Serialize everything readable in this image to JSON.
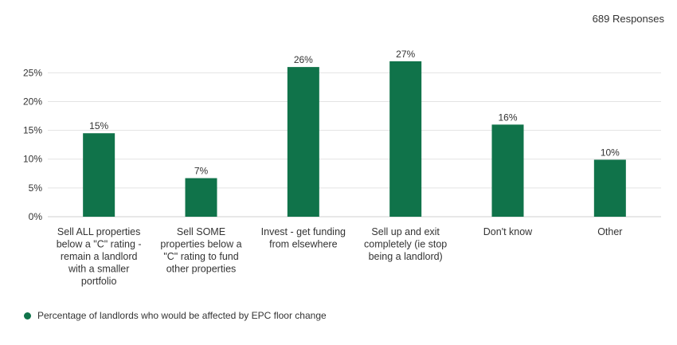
{
  "responses_label": "689 Responses",
  "colors": {
    "bar": "#10734a",
    "grid": "#e3e3e3",
    "text": "#333333"
  },
  "chart_data": {
    "type": "bar",
    "categories": [
      "Sell ALL properties below a \"C\" rating - remain a landlord with a smaller portfolio",
      "Sell SOME properties below a \"C\" rating to fund other properties",
      "Invest - get funding from elsewhere",
      "Sell up and exit completely (ie stop being a landlord)",
      "Don't know",
      "Other"
    ],
    "category_lines": [
      [
        "Sell ALL properties",
        "below a \"C\" rating -",
        "remain a landlord",
        "with a smaller",
        "portfolio"
      ],
      [
        "Sell SOME",
        "properties below a",
        "\"C\" rating to fund",
        "other properties"
      ],
      [
        "Invest - get funding",
        "from elsewhere"
      ],
      [
        "Sell up and exit",
        "completely (ie stop",
        "being a landlord)"
      ],
      [
        "Don't know"
      ],
      [
        "Other"
      ]
    ],
    "series": [
      {
        "name": "Percentage of landlords who would be affected by EPC floor change",
        "values": [
          14.5,
          6.7,
          26.0,
          27.0,
          16.0,
          9.9
        ],
        "labels": [
          "15%",
          "7%",
          "26%",
          "27%",
          "16%",
          "10%"
        ]
      }
    ],
    "ylim": [
      0,
      28
    ],
    "yticks": [
      0,
      5,
      10,
      15,
      20,
      25
    ],
    "ytick_labels": [
      "0%",
      "5%",
      "10%",
      "15%",
      "20%",
      "25%"
    ],
    "grid": true,
    "legend_position": "bottom-left"
  }
}
